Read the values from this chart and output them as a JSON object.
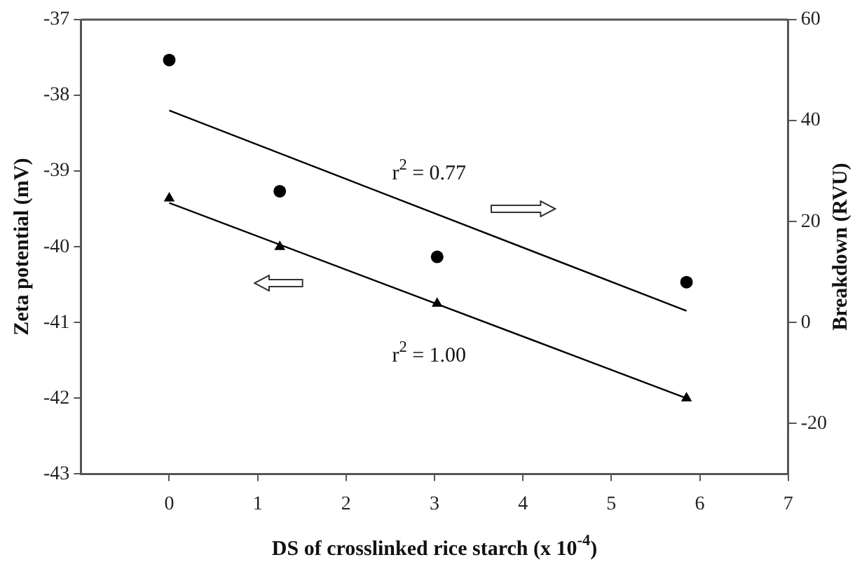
{
  "chart_data": {
    "type": "scatter",
    "xlabel": "DS of crosslinked rice starch (x 10$^{-4}$)",
    "ylabel": "Zeta potential (mV)",
    "y2label": "Breakdown (RVU)",
    "xlim": [
      -1,
      7
    ],
    "xticks": [
      0,
      1,
      2,
      3,
      4,
      5,
      6,
      7
    ],
    "ylim": [
      -43,
      -37
    ],
    "yticks": [
      -43,
      -42,
      -41,
      -40,
      -39,
      -38,
      -37
    ],
    "y2lim": [
      -30,
      60
    ],
    "y2ticks": [
      -20,
      0,
      20,
      40,
      60
    ],
    "series": [
      {
        "color": "#000000",
        "marker": "triangle",
        "x": [
          0,
          1.25,
          3.03,
          5.85
        ],
        "values": [
          -39.36,
          -40.0,
          -40.75,
          -42.0
        ]
      },
      {
        "axis": "y2",
        "color": "#000000",
        "marker": "circle",
        "x": [
          0,
          1.25,
          3.03,
          5.85
        ],
        "values": [
          52,
          26,
          13,
          8
        ]
      },
      {
        "type": "line",
        "color": "#000000",
        "marker": "none",
        "x": [
          0,
          5.85
        ],
        "values": [
          -39.42,
          -42.0
        ]
      },
      {
        "type": "line",
        "axis": "y2",
        "color": "#000000",
        "marker": "none",
        "x": [
          0,
          5.85
        ],
        "values": [
          42,
          2.3
        ]
      }
    ],
    "annotations": [
      "r$^{2}$ = 0.77",
      "r$^{2}$ = 1.00"
    ],
    "grid": false,
    "legend": false
  }
}
